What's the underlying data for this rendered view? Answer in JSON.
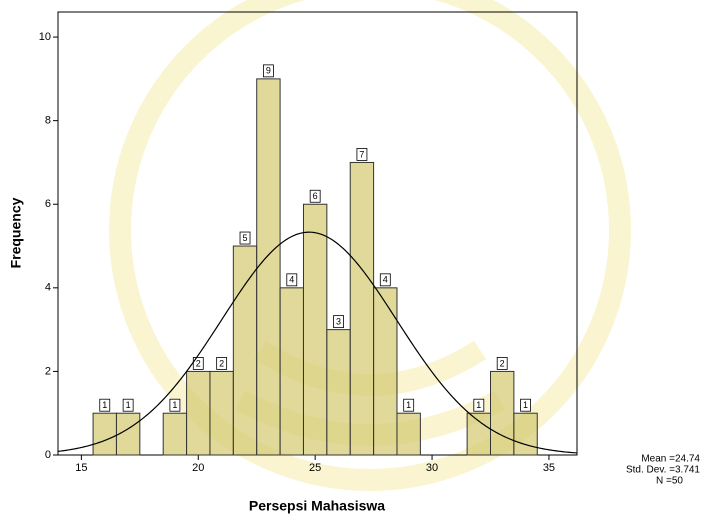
{
  "chart_data": {
    "type": "histogram",
    "x_label": "Persepsi Mahasiswa",
    "y_label": "Frequency",
    "bins": [
      15.5,
      16.5,
      17.5,
      18.5,
      19.5,
      20.5,
      21.5,
      22.5,
      23.5,
      24.5,
      25.5,
      26.5,
      27.5,
      28.5,
      29.5,
      30.5,
      31.5,
      32.5,
      33.5,
      34.5
    ],
    "values": [
      1,
      1,
      0,
      1,
      2,
      2,
      5,
      9,
      4,
      6,
      3,
      7,
      4,
      1,
      0,
      0,
      1,
      2,
      1
    ],
    "color": "#d6cc78",
    "edge_color": "#333333",
    "curve_color": "#000000",
    "xlim": [
      14,
      36.2
    ],
    "xticks": [
      15,
      20,
      25,
      30,
      35
    ],
    "ylim": [
      0,
      10.6
    ],
    "yticks": [
      0,
      2,
      4,
      6,
      8,
      10
    ],
    "stats": [
      {
        "value": 24.74,
        "label": "Mean =24.74"
      },
      {
        "value": 3.741,
        "label": "Std. Dev. =3.741"
      },
      {
        "value": 50,
        "label": "N =50"
      }
    ]
  }
}
